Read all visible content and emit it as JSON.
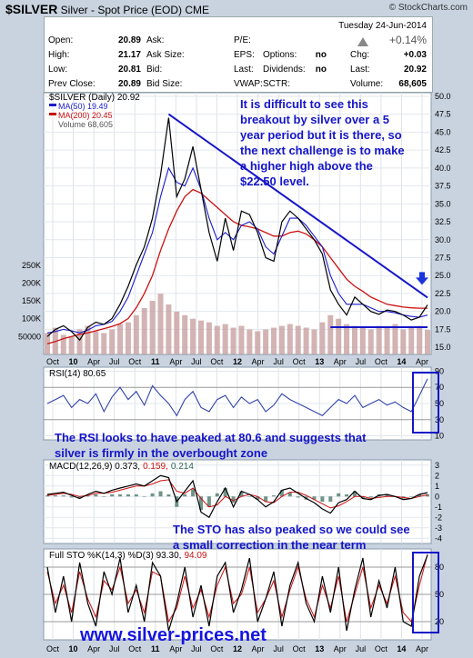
{
  "header": {
    "title_symbol": "$SILVER",
    "title_rest": "Silver - Spot Price (EOD)",
    "exchange": "CME",
    "brand": "© StockCharts.com",
    "date": "Tuesday  24-Jun-2014",
    "change_pct": "+0.14%"
  },
  "quote": {
    "open_label": "Open:",
    "open": "20.89",
    "high_label": "High:",
    "high": "21.17",
    "low_label": "Low:",
    "low": "20.81",
    "prev_label": "Prev Close:",
    "prev": "20.89",
    "ask_label": "Ask:",
    "asksize_label": "Ask Size:",
    "bid_label": "Bid:",
    "bidsize_label": "Bid Size:",
    "pe_label": "P/E:",
    "eps_label": "EPS:",
    "last_label": "Last:",
    "vwap_label": "VWAP:",
    "options_label": "Options:",
    "options": "no",
    "dividends_label": "Dividends:",
    "dividends": "no",
    "sctr_label": "SCTR:",
    "chg_label": "Chg:",
    "chg": "+0.03",
    "last2_label": "Last:",
    "last2": "20.92",
    "volume_label": "Volume:",
    "volume": "68,605"
  },
  "legend": {
    "price": "$SILVER (Daily) 20.92",
    "ma50": "MA(50) 19.49",
    "ma200": "MA(200) 20.45",
    "volume": "Volume 68,605",
    "rsi": "RSI(14) 80.65",
    "macd_a": "MACD(12,26,9) 0.373,",
    "macd_b": "0.159,",
    "macd_c": "0.214",
    "sto_a": "Full STO %K(14,3) %D(3) 93.30,",
    "sto_b": "94.09"
  },
  "annotations": {
    "main_note": [
      "It is difficult to see this",
      "breakout by silver over a 5",
      "year period but it is there, so",
      "the next challenge is to make",
      "a higher high above the",
      "$22.50 level."
    ],
    "rsi_note": [
      "The RSI looks to have peaked at 80.6 and suggests that",
      "silver is firmly in the overbought zone"
    ],
    "sto_note": [
      "The STO has also peaked so we could see",
      "a small correction in the near term"
    ],
    "watermark": "www.silver-prices.net"
  },
  "colors": {
    "price": "#000000",
    "ma50": "#1a1acc",
    "ma200": "#cc1111",
    "volume": "#c8a0a0",
    "trend": "#1515c8",
    "rsi": "#3344aa",
    "macd": "#000000",
    "signal": "#cc1111",
    "hist": "#336655",
    "sto_k": "#000000",
    "sto_d": "#cc1111",
    "annotation": "#1515c8"
  },
  "chart_data": {
    "type": "line",
    "x_tick_labels": [
      "Oct",
      "10",
      "Apr",
      "Jul",
      "Oct",
      "11",
      "Apr",
      "Jul",
      "Oct",
      "12",
      "Apr",
      "Jul",
      "Oct",
      "13",
      "Apr",
      "Jul",
      "Oct",
      "14",
      "Apr"
    ],
    "price_axis_ticks": [
      "50.0",
      "47.5",
      "45.0",
      "42.5",
      "40.0",
      "37.5",
      "35.0",
      "32.5",
      "30.0",
      "27.5",
      "25.0",
      "22.5",
      "20.0",
      "17.5",
      "15.0"
    ],
    "volume_axis_ticks": [
      "250K",
      "200K",
      "150K",
      "100K",
      "50000"
    ],
    "rsi_axis_ticks": [
      "90",
      "70",
      "50",
      "30",
      "10"
    ],
    "macd_axis_ticks": [
      "3",
      "2",
      "1",
      "0",
      "-1",
      "-2",
      "-3",
      "-4"
    ],
    "sto_axis_ticks": [
      "80",
      "50",
      "20"
    ],
    "price_ylim": [
      14,
      50.5
    ],
    "price": [
      16.5,
      17.5,
      18.0,
      17.2,
      16.0,
      17.8,
      18.5,
      18.2,
      19.0,
      21.0,
      23.5,
      26.5,
      29.0,
      33.0,
      39.0,
      47.0,
      36.0,
      38.5,
      43.0,
      37.0,
      31.0,
      27.0,
      33.0,
      28.5,
      34.0,
      33.5,
      31.0,
      27.5,
      27.0,
      32.5,
      34.0,
      33.0,
      31.5,
      30.0,
      28.0,
      23.0,
      21.0,
      19.5,
      22.0,
      21.0,
      20.0,
      19.6,
      20.2,
      20.0,
      19.5,
      18.8,
      19.2,
      20.92
    ],
    "ma50": [
      17.0,
      17.2,
      17.5,
      17.3,
      17.0,
      17.4,
      18.0,
      18.2,
      18.6,
      20.0,
      22.0,
      25.0,
      28.0,
      31.0,
      36.0,
      40.0,
      38.0,
      37.5,
      40.0,
      37.0,
      33.0,
      30.0,
      31.0,
      30.0,
      32.0,
      32.5,
      31.5,
      29.0,
      28.0,
      30.5,
      33.0,
      33.0,
      32.0,
      30.5,
      29.0,
      25.0,
      22.5,
      21.0,
      21.0,
      21.0,
      20.5,
      20.0,
      20.0,
      19.8,
      19.5,
      19.3,
      19.2,
      19.49
    ],
    "ma200": [
      15.5,
      15.8,
      16.2,
      16.5,
      16.8,
      17.0,
      17.3,
      17.6,
      17.9,
      18.3,
      19.0,
      20.5,
      22.5,
      25.0,
      28.5,
      31.5,
      34.0,
      36.0,
      37.0,
      36.5,
      35.5,
      34.5,
      33.5,
      32.5,
      32.0,
      31.8,
      31.5,
      31.0,
      30.5,
      30.5,
      31.0,
      31.2,
      30.8,
      30.0,
      29.0,
      27.5,
      26.0,
      24.5,
      23.5,
      22.8,
      22.0,
      21.5,
      21.0,
      20.8,
      20.6,
      20.5,
      20.45,
      20.45
    ],
    "volume_k": [
      60,
      75,
      55,
      50,
      70,
      80,
      65,
      60,
      70,
      85,
      90,
      110,
      130,
      150,
      170,
      140,
      120,
      110,
      100,
      95,
      90,
      80,
      85,
      75,
      80,
      70,
      65,
      70,
      75,
      80,
      85,
      80,
      75,
      70,
      90,
      110,
      100,
      85,
      80,
      75,
      70,
      80,
      75,
      85,
      70,
      75,
      80,
      68.6
    ],
    "rsi": [
      50,
      55,
      60,
      45,
      55,
      50,
      62,
      40,
      58,
      70,
      55,
      65,
      48,
      72,
      60,
      50,
      35,
      55,
      65,
      45,
      40,
      55,
      60,
      45,
      58,
      50,
      55,
      40,
      48,
      62,
      55,
      50,
      45,
      40,
      35,
      45,
      55,
      50,
      60,
      45,
      50,
      55,
      48,
      52,
      45,
      40,
      60,
      80.65
    ],
    "rsi_ylim": [
      5,
      95
    ],
    "macd": [
      0.2,
      0.3,
      0.4,
      0.1,
      -0.2,
      0.2,
      0.5,
      0.3,
      0.6,
      0.8,
      1.0,
      1.2,
      1.0,
      1.5,
      2.0,
      1.8,
      -0.5,
      0.5,
      1.5,
      -1.5,
      -2.0,
      -0.5,
      0.8,
      -1.0,
      0.5,
      0.2,
      -0.3,
      -1.0,
      -0.5,
      0.6,
      0.8,
      0.3,
      -0.2,
      -0.6,
      -1.2,
      -1.6,
      -0.6,
      -0.3,
      0.5,
      -0.2,
      -0.3,
      0.1,
      0.2,
      0.0,
      -0.3,
      -0.2,
      0.2,
      0.373
    ],
    "macd_signal": [
      0.1,
      0.2,
      0.3,
      0.2,
      0.0,
      0.1,
      0.3,
      0.3,
      0.4,
      0.6,
      0.8,
      1.0,
      1.0,
      1.2,
      1.5,
      1.6,
      0.5,
      0.3,
      0.8,
      -0.2,
      -1.0,
      -0.8,
      0.0,
      -0.4,
      0.0,
      0.2,
      0.0,
      -0.5,
      -0.6,
      0.0,
      0.4,
      0.4,
      0.1,
      -0.3,
      -0.7,
      -1.1,
      -0.9,
      -0.5,
      0.0,
      0.0,
      -0.2,
      -0.1,
      0.0,
      0.0,
      -0.1,
      -0.2,
      0.0,
      0.159
    ],
    "macd_ylim": [
      -4.5,
      3.5
    ],
    "sto_k": [
      80,
      30,
      70,
      20,
      85,
      40,
      15,
      75,
      50,
      90,
      30,
      60,
      20,
      85,
      70,
      10,
      40,
      80,
      25,
      60,
      15,
      70,
      85,
      30,
      55,
      90,
      20,
      45,
      75,
      15,
      60,
      85,
      40,
      20,
      70,
      30,
      80,
      10,
      55,
      90,
      25,
      65,
      35,
      80,
      20,
      15,
      70,
      93.3
    ],
    "sto_d": [
      75,
      40,
      60,
      30,
      75,
      45,
      25,
      65,
      55,
      80,
      40,
      55,
      30,
      75,
      70,
      20,
      35,
      70,
      35,
      55,
      25,
      60,
      80,
      40,
      50,
      80,
      30,
      45,
      65,
      25,
      55,
      80,
      45,
      25,
      60,
      35,
      70,
      20,
      50,
      80,
      35,
      60,
      40,
      70,
      30,
      20,
      60,
      94.09
    ],
    "sto_ylim": [
      0,
      100
    ],
    "reference_lines": {
      "support": 17.8
    }
  }
}
